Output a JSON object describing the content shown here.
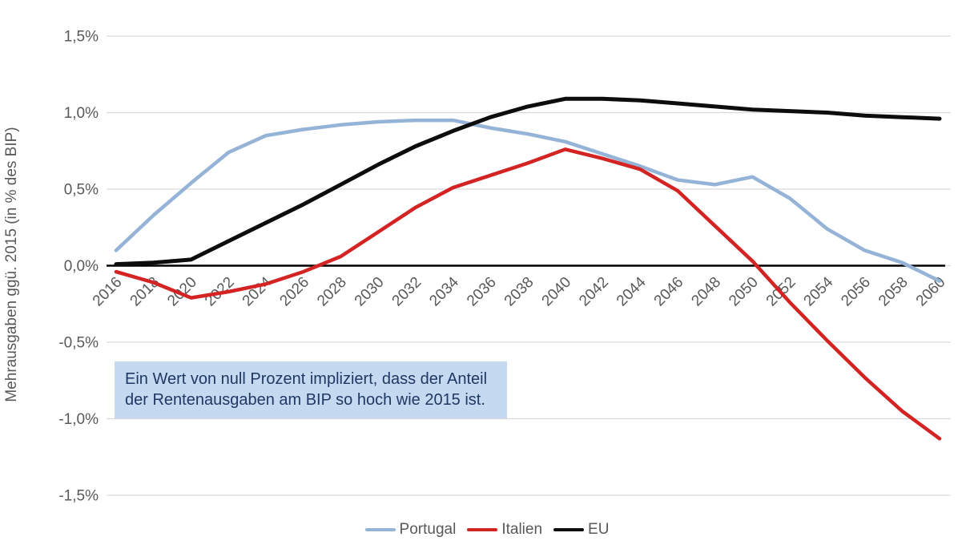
{
  "y_axis": {
    "tick_labels": [
      "1,5%",
      "1,0%",
      "0,5%",
      "0,0%",
      "-0,5%",
      "-1,0%",
      "-1,5%"
    ],
    "tick_values": [
      1.5,
      1.0,
      0.5,
      0.0,
      -0.5,
      -1.0,
      -1.5
    ]
  },
  "annotation": {
    "lines": [
      "Ein Wert von null Prozent impliziert, dass der Anteil",
      "der Rentenausgaben am BIP so hoch wie 2015 ist."
    ],
    "background": "#c5d9f1",
    "text_color": "#1f3864"
  },
  "colors": {
    "grid": "#d9d9d9",
    "axis_text": "#595959",
    "zero_line": "#000000"
  },
  "chart_data": {
    "type": "line",
    "title": "",
    "ylabel": "Mehrausgaben ggü. 2015 (in % des BIP)",
    "xlabel": "",
    "ylim": [
      -1.5,
      1.5
    ],
    "grid": true,
    "zero_line": true,
    "legend_position": "bottom",
    "x": [
      2016,
      2018,
      2020,
      2022,
      2024,
      2026,
      2028,
      2030,
      2032,
      2034,
      2036,
      2038,
      2040,
      2042,
      2044,
      2046,
      2048,
      2050,
      2052,
      2054,
      2056,
      2058,
      2060
    ],
    "x_tick_labels": [
      "2016",
      "2018",
      "2020",
      "2022",
      "2024",
      "2026",
      "2028",
      "2030",
      "2032",
      "2034",
      "2036",
      "2038",
      "2040",
      "2042",
      "2044",
      "2046",
      "2048",
      "2050",
      "2052",
      "2054",
      "2056",
      "2058",
      "2060"
    ],
    "series": [
      {
        "name": "Portugal",
        "color": "#95b3d7",
        "stroke_width": 4.5,
        "values": [
          0.1,
          0.33,
          0.54,
          0.74,
          0.85,
          0.89,
          0.92,
          0.94,
          0.95,
          0.95,
          0.9,
          0.86,
          0.81,
          0.73,
          0.65,
          0.56,
          0.53,
          0.58,
          0.44,
          0.24,
          0.1,
          0.02,
          -0.1
        ]
      },
      {
        "name": "Italien",
        "color": "#d32323",
        "stroke_width": 4.5,
        "values": [
          -0.04,
          -0.11,
          -0.21,
          -0.17,
          -0.12,
          -0.04,
          0.06,
          0.22,
          0.38,
          0.51,
          0.59,
          0.67,
          0.76,
          0.7,
          0.63,
          0.49,
          0.26,
          0.03,
          -0.24,
          -0.49,
          -0.73,
          -0.95,
          -1.13
        ]
      },
      {
        "name": "EU",
        "color": "#0d0d0d",
        "stroke_width": 5,
        "values": [
          0.01,
          0.02,
          0.04,
          0.16,
          0.28,
          0.4,
          0.53,
          0.66,
          0.78,
          0.88,
          0.97,
          1.04,
          1.09,
          1.09,
          1.08,
          1.06,
          1.04,
          1.02,
          1.01,
          1.0,
          0.98,
          0.97,
          0.96
        ]
      }
    ]
  }
}
